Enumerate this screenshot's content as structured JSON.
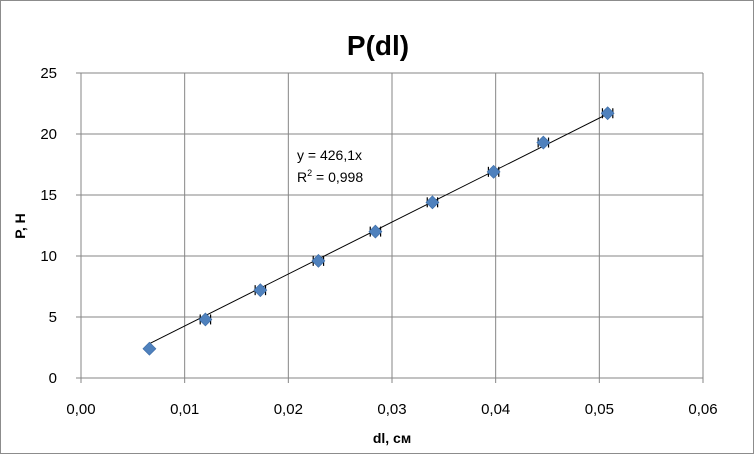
{
  "chart_data": {
    "type": "scatter",
    "title": "P(dl)",
    "xlabel": "dl, см",
    "ylabel": "P, Н",
    "xlim": [
      0,
      0.06
    ],
    "ylim": [
      0,
      25
    ],
    "x_ticks": [
      0,
      0.01,
      0.02,
      0.03,
      0.04,
      0.05,
      0.06
    ],
    "y_ticks": [
      0,
      5,
      10,
      15,
      20,
      25
    ],
    "x_tick_labels": [
      "0,00",
      "0,01",
      "0,02",
      "0,03",
      "0,04",
      "0,05",
      "0,06"
    ],
    "y_tick_labels": [
      "0",
      "5",
      "10",
      "15",
      "20",
      "25"
    ],
    "grid": true,
    "legend": "none",
    "marker": "diamond",
    "marker_color": "#4f81bd",
    "line_color": "#000000",
    "series": [
      {
        "x": [
          0.0066,
          0.012,
          0.0173,
          0.0229,
          0.0284,
          0.0339,
          0.0398,
          0.0446,
          0.0508
        ],
        "y": [
          2.4,
          4.8,
          7.2,
          9.6,
          12.0,
          14.4,
          16.9,
          19.3,
          21.7
        ],
        "x_error": 0.0005
      }
    ],
    "trendline": {
      "slope": 426.1,
      "x_range": [
        0.0066,
        0.051
      ],
      "equation": "y = 426,1x",
      "r2_prefix": "R",
      "r2_sup": "2",
      "r2_value": " = 0,998"
    }
  }
}
